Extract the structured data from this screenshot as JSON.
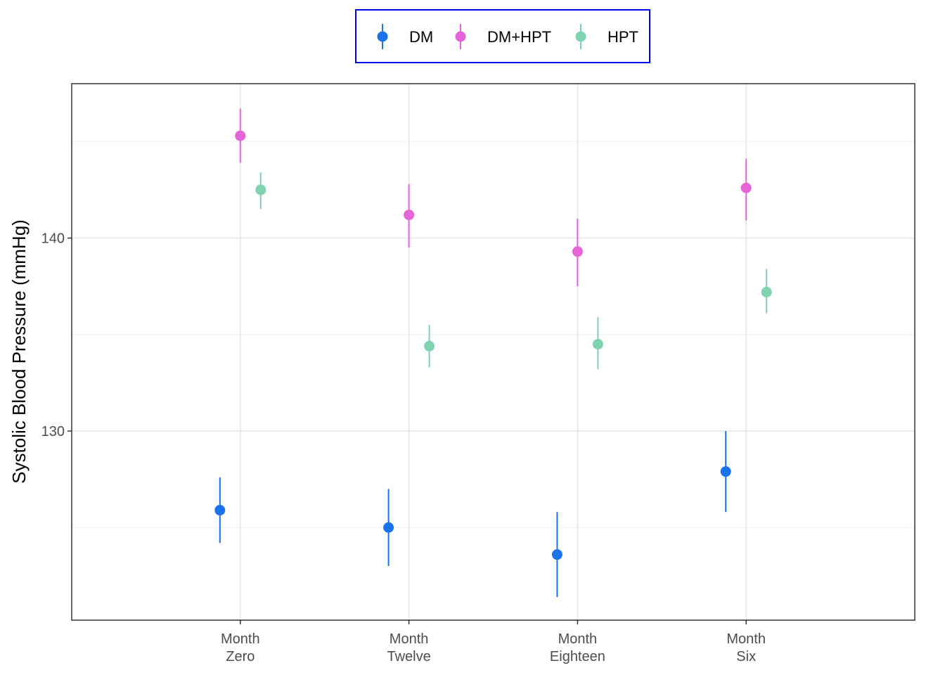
{
  "chart_data": {
    "type": "scatter",
    "subtype": "point-range",
    "title": "",
    "xlabel": "",
    "ylabel": "Systolic Blood Pressure (mmHg)",
    "categories": [
      [
        "Month",
        "Zero"
      ],
      [
        "Month",
        "Twelve"
      ],
      [
        "Month",
        "Eighteen"
      ],
      [
        "Month",
        "Six"
      ]
    ],
    "ylim": [
      120.2,
      148
    ],
    "yticks": [
      130,
      140
    ],
    "grid": true,
    "legend_position": "top",
    "series": [
      {
        "name": "DM",
        "color": "#1a73e8",
        "points": [
          {
            "y": 125.9,
            "low": 124.2,
            "high": 127.6
          },
          {
            "y": 125.0,
            "low": 123.0,
            "high": 127.0
          },
          {
            "y": 123.6,
            "low": 121.4,
            "high": 125.8
          },
          {
            "y": 127.9,
            "low": 125.8,
            "high": 130.0
          }
        ]
      },
      {
        "name": "DM+HPT",
        "color": "#e565d8",
        "points": [
          {
            "y": 145.3,
            "low": 143.9,
            "high": 146.7
          },
          {
            "y": 141.2,
            "low": 139.5,
            "high": 142.8
          },
          {
            "y": 139.3,
            "low": 137.5,
            "high": 141.0
          },
          {
            "y": 142.6,
            "low": 140.9,
            "high": 144.1
          }
        ]
      },
      {
        "name": "HPT",
        "color": "#7fd3ae",
        "points": [
          {
            "y": 142.5,
            "low": 141.5,
            "high": 143.4
          },
          {
            "y": 134.4,
            "low": 133.3,
            "high": 135.5
          },
          {
            "y": 134.5,
            "low": 133.2,
            "high": 135.9
          },
          {
            "y": 137.2,
            "low": 136.1,
            "high": 138.4
          }
        ]
      }
    ]
  }
}
